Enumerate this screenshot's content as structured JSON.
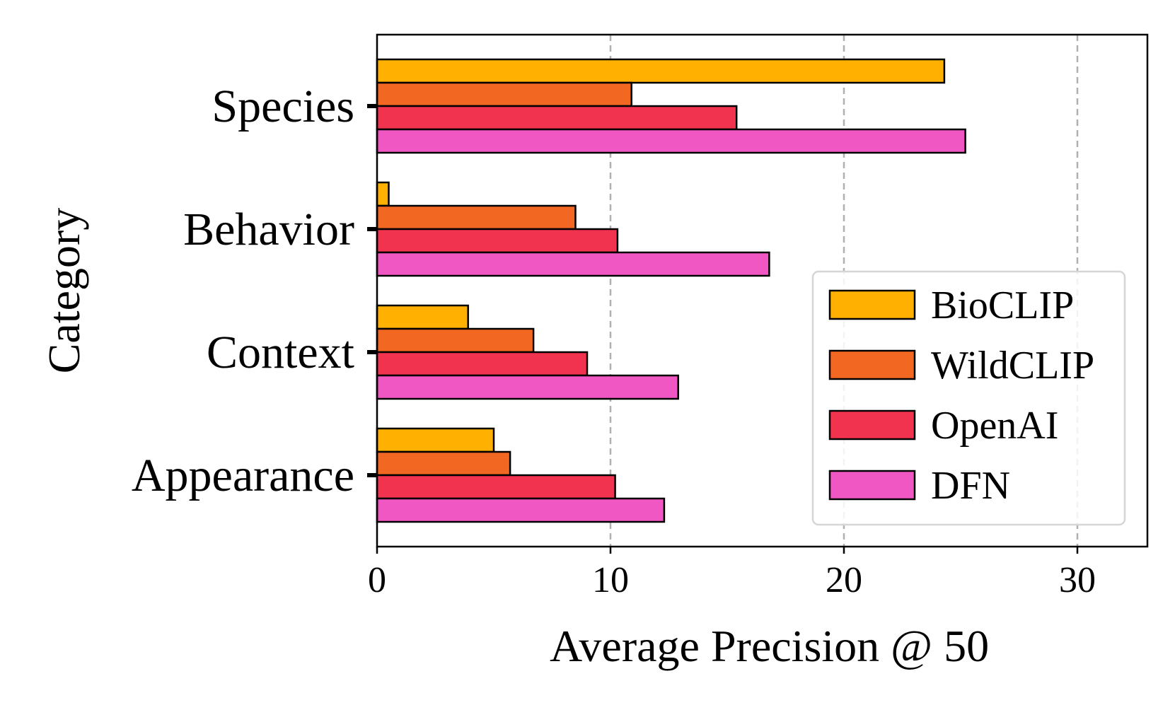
{
  "chart_data": {
    "type": "bar",
    "orientation": "horizontal",
    "categories": [
      "Appearance",
      "Context",
      "Behavior",
      "Species"
    ],
    "series": [
      {
        "name": "BioCLIP",
        "color": "#ffb000",
        "values": [
          5.0,
          3.9,
          0.5,
          24.3
        ]
      },
      {
        "name": "WildCLIP",
        "color": "#f26722",
        "values": [
          5.7,
          6.7,
          8.5,
          10.9
        ]
      },
      {
        "name": "OpenAI",
        "color": "#f2334f",
        "values": [
          10.2,
          9.0,
          10.3,
          15.4
        ]
      },
      {
        "name": "DFN",
        "color": "#f157c3",
        "values": [
          12.3,
          12.9,
          16.8,
          25.2
        ]
      }
    ],
    "xlabel": "Average Precision @ 50",
    "ylabel": "Category",
    "xlim": [
      0,
      33
    ],
    "xticks": [
      0,
      10,
      20,
      30
    ],
    "grid": "vertical-dashed",
    "legend_position": "lower-right"
  }
}
